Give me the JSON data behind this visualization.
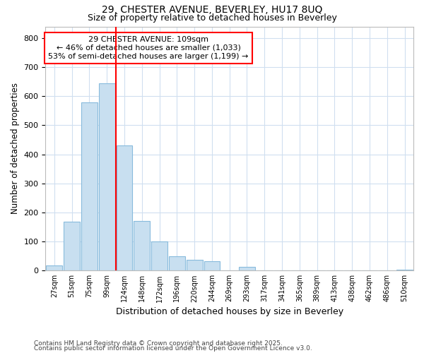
{
  "title1": "29, CHESTER AVENUE, BEVERLEY, HU17 8UQ",
  "title2": "Size of property relative to detached houses in Beverley",
  "xlabel": "Distribution of detached houses by size in Beverley",
  "ylabel": "Number of detached properties",
  "categories": [
    "27sqm",
    "51sqm",
    "75sqm",
    "99sqm",
    "124sqm",
    "148sqm",
    "172sqm",
    "196sqm",
    "220sqm",
    "244sqm",
    "269sqm",
    "293sqm",
    "317sqm",
    "341sqm",
    "365sqm",
    "389sqm",
    "413sqm",
    "438sqm",
    "462sqm",
    "486sqm",
    "510sqm"
  ],
  "values": [
    18,
    168,
    580,
    645,
    430,
    172,
    100,
    50,
    38,
    32,
    0,
    12,
    0,
    0,
    0,
    0,
    0,
    0,
    0,
    0,
    3
  ],
  "bar_color": "#c8dff0",
  "bar_edge_color": "#88bbdd",
  "red_line_x": 3.5,
  "annotation_title": "29 CHESTER AVENUE: 109sqm",
  "annotation_line1": "← 46% of detached houses are smaller (1,033)",
  "annotation_line2": "53% of semi-detached houses are larger (1,199) →",
  "ylim": [
    0,
    840
  ],
  "yticks": [
    0,
    100,
    200,
    300,
    400,
    500,
    600,
    700,
    800
  ],
  "footer1": "Contains HM Land Registry data © Crown copyright and database right 2025.",
  "footer2": "Contains public sector information licensed under the Open Government Licence v3.0.",
  "bg_color": "#ffffff",
  "grid_color": "#d0dff0"
}
